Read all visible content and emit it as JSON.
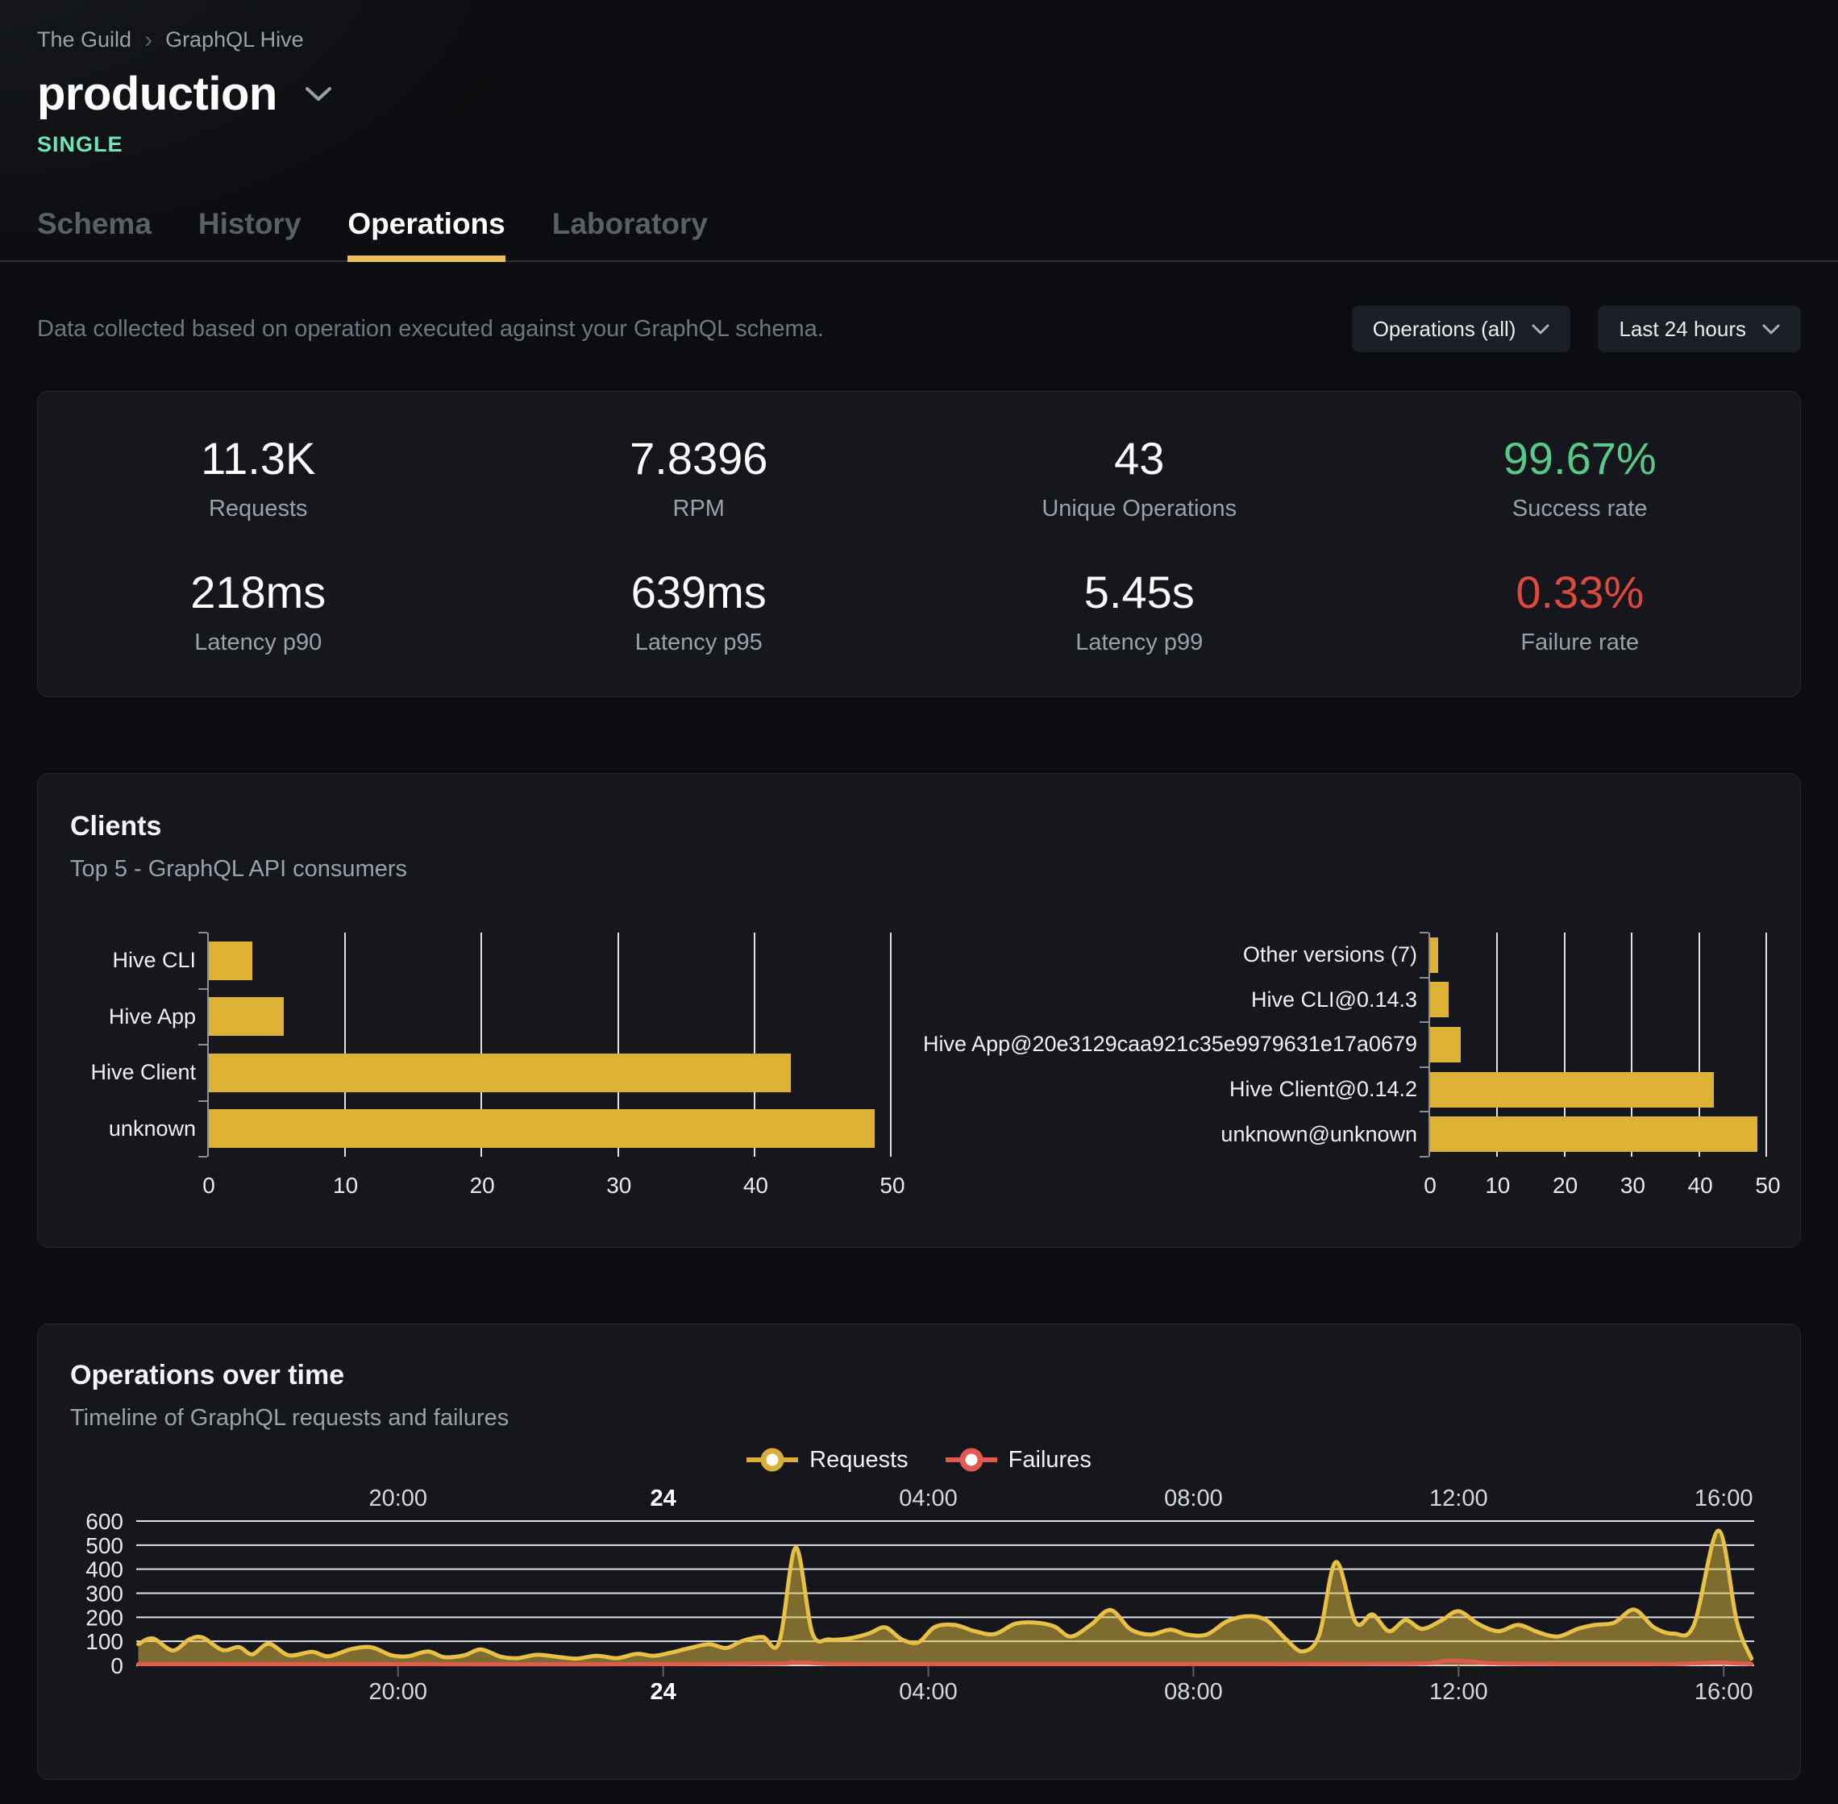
{
  "header": {
    "breadcrumb": {
      "org": "The Guild",
      "separator": "›",
      "project": "GraphQL Hive"
    },
    "target_name": "production",
    "badge": "SINGLE",
    "tabs": [
      {
        "label": "Schema",
        "active": false
      },
      {
        "label": "History",
        "active": false
      },
      {
        "label": "Operations",
        "active": true
      },
      {
        "label": "Laboratory",
        "active": false
      }
    ]
  },
  "filters": {
    "description": "Data collected based on operation executed against your GraphQL schema.",
    "operations_dropdown": "Operations (all)",
    "period_dropdown": "Last 24 hours"
  },
  "stats": [
    {
      "value": "11.3K",
      "label": "Requests",
      "tone": "default"
    },
    {
      "value": "7.8396",
      "label": "RPM",
      "tone": "default"
    },
    {
      "value": "43",
      "label": "Unique Operations",
      "tone": "default"
    },
    {
      "value": "99.67%",
      "label": "Success rate",
      "tone": "green"
    },
    {
      "value": "218ms",
      "label": "Latency p90",
      "tone": "default"
    },
    {
      "value": "639ms",
      "label": "Latency p95",
      "tone": "default"
    },
    {
      "value": "5.45s",
      "label": "Latency p99",
      "tone": "default"
    },
    {
      "value": "0.33%",
      "label": "Failure rate",
      "tone": "red"
    }
  ],
  "clients_card": {
    "title": "Clients",
    "subtitle": "Top 5 - GraphQL API consumers"
  },
  "timeline_card": {
    "title": "Operations over time",
    "subtitle": "Timeline of GraphQL requests and failures",
    "legend": [
      {
        "label": "Requests",
        "color": "#d9af39"
      },
      {
        "label": "Failures",
        "color": "#e25a4f"
      }
    ]
  },
  "colors": {
    "accent_yellow": "#deb335",
    "tab_underline": "#eabf53",
    "badge_green": "#6ee7b7",
    "success_green": "#58c98b",
    "failure_red": "#e0483f",
    "timeline_red": "#e25a4f",
    "card_bg": "#15171c",
    "page_bg": "#0b0d10"
  },
  "chart_data": [
    {
      "type": "bar",
      "id": "clients-by-name",
      "orientation": "horizontal",
      "categories": [
        "Hive CLI",
        "Hive App",
        "Hive Client",
        "unknown"
      ],
      "values": [
        3.2,
        5.5,
        42.7,
        48.8
      ],
      "xlim": [
        0,
        50
      ],
      "xticks": [
        0,
        10,
        20,
        30,
        40,
        50
      ],
      "bar_color": "#deb335",
      "grid": true
    },
    {
      "type": "bar",
      "id": "clients-by-version",
      "orientation": "horizontal",
      "categories": [
        "Other versions (7)",
        "Hive CLI@0.14.3",
        "Hive App@20e3129caa921c35e9979631e17a0679",
        "Hive Client@0.14.2",
        "unknown@unknown"
      ],
      "values": [
        1.2,
        2.8,
        4.6,
        42.2,
        48.7
      ],
      "xlim": [
        0,
        50
      ],
      "xticks": [
        0,
        10,
        20,
        30,
        40,
        50
      ],
      "bar_color": "#deb335",
      "grid": true
    },
    {
      "type": "area",
      "id": "operations-over-time",
      "title": "Operations over time",
      "x_domain": [
        16.05,
        40.46
      ],
      "x_ticks": [
        {
          "pos": 20,
          "label": "20:00",
          "bold": false
        },
        {
          "pos": 24,
          "label": "24",
          "bold": true
        },
        {
          "pos": 28,
          "label": "04:00",
          "bold": false
        },
        {
          "pos": 32,
          "label": "08:00",
          "bold": false
        },
        {
          "pos": 36,
          "label": "12:00",
          "bold": false
        },
        {
          "pos": 40,
          "label": "16:00",
          "bold": false
        }
      ],
      "ylim": [
        0,
        600
      ],
      "y_ticks": [
        0,
        100,
        200,
        300,
        400,
        500,
        600
      ],
      "grid": true,
      "legend_position": "top-center",
      "series": [
        {
          "name": "Requests",
          "color": "#e8c044",
          "fill_opacity": 0.5,
          "points": [
            [
              16.08,
              88
            ],
            [
              16.3,
              112
            ],
            [
              16.6,
              62
            ],
            [
              16.85,
              108
            ],
            [
              17.05,
              116
            ],
            [
              17.35,
              64
            ],
            [
              17.6,
              76
            ],
            [
              17.8,
              46
            ],
            [
              18.05,
              90
            ],
            [
              18.35,
              42
            ],
            [
              18.7,
              56
            ],
            [
              18.95,
              38
            ],
            [
              19.3,
              68
            ],
            [
              19.6,
              75
            ],
            [
              19.9,
              42
            ],
            [
              20.15,
              38
            ],
            [
              20.45,
              58
            ],
            [
              20.7,
              34
            ],
            [
              21.0,
              42
            ],
            [
              21.25,
              66
            ],
            [
              21.55,
              36
            ],
            [
              21.8,
              30
            ],
            [
              22.1,
              44
            ],
            [
              22.45,
              34
            ],
            [
              22.7,
              28
            ],
            [
              23.0,
              40
            ],
            [
              23.3,
              30
            ],
            [
              23.6,
              48
            ],
            [
              23.85,
              40
            ],
            [
              24.1,
              52
            ],
            [
              24.4,
              72
            ],
            [
              24.7,
              88
            ],
            [
              24.95,
              72
            ],
            [
              25.2,
              102
            ],
            [
              25.5,
              118
            ],
            [
              25.75,
              96
            ],
            [
              26.0,
              490
            ],
            [
              26.25,
              135
            ],
            [
              26.5,
              108
            ],
            [
              26.8,
              112
            ],
            [
              27.1,
              132
            ],
            [
              27.35,
              158
            ],
            [
              27.6,
              108
            ],
            [
              27.85,
              96
            ],
            [
              28.1,
              160
            ],
            [
              28.4,
              168
            ],
            [
              28.7,
              142
            ],
            [
              29.0,
              130
            ],
            [
              29.3,
              172
            ],
            [
              29.6,
              178
            ],
            [
              29.9,
              162
            ],
            [
              30.15,
              120
            ],
            [
              30.45,
              168
            ],
            [
              30.75,
              230
            ],
            [
              31.05,
              150
            ],
            [
              31.35,
              128
            ],
            [
              31.65,
              148
            ],
            [
              31.9,
              128
            ],
            [
              32.2,
              128
            ],
            [
              32.5,
              182
            ],
            [
              32.8,
              204
            ],
            [
              33.1,
              188
            ],
            [
              33.4,
              108
            ],
            [
              33.65,
              58
            ],
            [
              33.9,
              128
            ],
            [
              34.15,
              430
            ],
            [
              34.45,
              178
            ],
            [
              34.7,
              212
            ],
            [
              34.95,
              142
            ],
            [
              35.2,
              188
            ],
            [
              35.45,
              152
            ],
            [
              35.75,
              188
            ],
            [
              36.0,
              225
            ],
            [
              36.3,
              172
            ],
            [
              36.6,
              142
            ],
            [
              36.9,
              168
            ],
            [
              37.2,
              138
            ],
            [
              37.5,
              120
            ],
            [
              37.8,
              152
            ],
            [
              38.05,
              168
            ],
            [
              38.35,
              178
            ],
            [
              38.65,
              232
            ],
            [
              38.95,
              158
            ],
            [
              39.25,
              132
            ],
            [
              39.55,
              168
            ],
            [
              39.92,
              560
            ],
            [
              40.2,
              180
            ],
            [
              40.42,
              28
            ]
          ]
        },
        {
          "name": "Failures",
          "color": "#e25a4f",
          "fill_opacity": 0.25,
          "points": [
            [
              16.08,
              5
            ],
            [
              18,
              5
            ],
            [
              20,
              5
            ],
            [
              22,
              4
            ],
            [
              24,
              5
            ],
            [
              25.7,
              7
            ],
            [
              25.95,
              13
            ],
            [
              26.2,
              11
            ],
            [
              26.5,
              6
            ],
            [
              27.5,
              5
            ],
            [
              29,
              5
            ],
            [
              31,
              5
            ],
            [
              33,
              5
            ],
            [
              34.5,
              6
            ],
            [
              35.5,
              8
            ],
            [
              35.85,
              20
            ],
            [
              36.2,
              15
            ],
            [
              36.6,
              8
            ],
            [
              37.5,
              6
            ],
            [
              38.5,
              6
            ],
            [
              39.3,
              6
            ],
            [
              39.9,
              12
            ],
            [
              40.2,
              8
            ],
            [
              40.42,
              6
            ]
          ]
        }
      ]
    }
  ]
}
